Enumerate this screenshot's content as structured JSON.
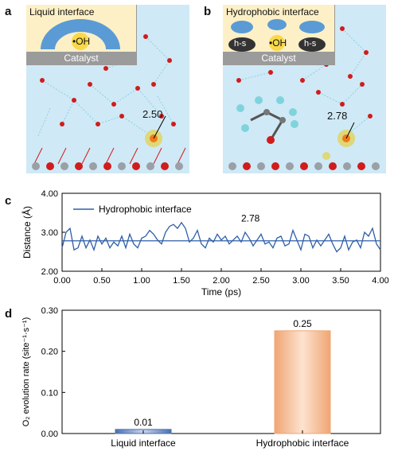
{
  "panels": {
    "a": {
      "letter": "a",
      "inset_title": "Liquid interface",
      "species_label": "•OH",
      "catalyst_label": "Catalyst",
      "distance_label": "2.50"
    },
    "b": {
      "letter": "b",
      "inset_title": "Hydrophobic interface",
      "species_label": "•OH",
      "hs_label_left": "h-s",
      "hs_label_right": "h-s",
      "catalyst_label": "Catalyst",
      "distance_label": "2.78"
    },
    "c": {
      "letter": "c"
    },
    "d": {
      "letter": "d"
    }
  },
  "colors": {
    "water_bg": "#cfe9f6",
    "inset_bg": "#fdf0c6",
    "catalyst": "#9b9b9b",
    "line": "#2f5fa7",
    "bar_liquid": "#4a6fb0",
    "bar_hydrophobic": "#f0a574",
    "oxygen": "#d01c1c",
    "metal": "#9aa0a6"
  },
  "chart_data": [
    {
      "type": "line",
      "xlabel": "Time (ps)",
      "ylabel": "Distance (Å)",
      "xlim": [
        0,
        4
      ],
      "ylim": [
        2,
        4
      ],
      "xticks": [
        "0.00",
        "0.50",
        "1.00",
        "1.50",
        "2.00",
        "2.50",
        "3.00",
        "3.50",
        "4.00"
      ],
      "yticks": [
        "2.00",
        "3.00",
        "4.00"
      ],
      "legend": "top-left",
      "series": [
        {
          "name": "Hydrophobic interface",
          "x": [
            0,
            0.05,
            0.1,
            0.15,
            0.2,
            0.25,
            0.3,
            0.35,
            0.4,
            0.45,
            0.5,
            0.55,
            0.6,
            0.65,
            0.7,
            0.75,
            0.8,
            0.85,
            0.9,
            0.95,
            1.0,
            1.05,
            1.1,
            1.15,
            1.2,
            1.25,
            1.3,
            1.35,
            1.4,
            1.45,
            1.5,
            1.55,
            1.6,
            1.65,
            1.7,
            1.75,
            1.8,
            1.85,
            1.9,
            1.95,
            2.0,
            2.05,
            2.1,
            2.15,
            2.2,
            2.25,
            2.3,
            2.35,
            2.4,
            2.45,
            2.5,
            2.55,
            2.6,
            2.65,
            2.7,
            2.75,
            2.8,
            2.85,
            2.9,
            2.95,
            3.0,
            3.05,
            3.1,
            3.15,
            3.2,
            3.25,
            3.3,
            3.35,
            3.4,
            3.45,
            3.5,
            3.55,
            3.6,
            3.65,
            3.7,
            3.75,
            3.8,
            3.85,
            3.9,
            3.95,
            4.0
          ],
          "y": [
            2.6,
            3.0,
            3.1,
            2.55,
            2.6,
            2.9,
            2.6,
            2.8,
            2.55,
            2.9,
            2.7,
            2.85,
            2.6,
            2.75,
            2.65,
            2.9,
            2.6,
            2.95,
            2.7,
            2.6,
            2.85,
            2.9,
            3.05,
            2.95,
            2.8,
            2.7,
            3.0,
            3.15,
            3.2,
            3.1,
            3.25,
            3.1,
            2.75,
            2.85,
            3.05,
            2.7,
            2.6,
            2.85,
            2.75,
            2.95,
            2.8,
            2.9,
            2.7,
            2.8,
            2.9,
            2.75,
            3.0,
            2.85,
            2.65,
            2.8,
            2.95,
            2.7,
            2.75,
            2.6,
            2.85,
            2.9,
            2.65,
            2.7,
            3.05,
            2.8,
            2.55,
            2.95,
            2.9,
            2.6,
            2.8,
            2.65,
            2.8,
            2.95,
            2.7,
            2.5,
            2.6,
            2.9,
            2.55,
            2.75,
            2.8,
            2.6,
            3.0,
            2.9,
            3.1,
            2.7,
            2.55
          ]
        },
        {
          "name": "",
          "x": [
            0,
            4
          ],
          "y": [
            2.78,
            2.78
          ]
        }
      ],
      "annotations": [
        {
          "text": "2.78",
          "x": 2.25,
          "y": 3.28
        }
      ]
    },
    {
      "type": "bar",
      "categories": [
        "Liquid interface",
        "Hydrophobic interface"
      ],
      "values": [
        0.01,
        0.25
      ],
      "value_labels": [
        "0.01",
        "0.25"
      ],
      "ylabel": "O₂ evolution rate (site⁻¹·s⁻¹)",
      "ylim": [
        0,
        0.3
      ],
      "yticks": [
        "0.00",
        "0.10",
        "0.20",
        "0.30"
      ]
    }
  ]
}
